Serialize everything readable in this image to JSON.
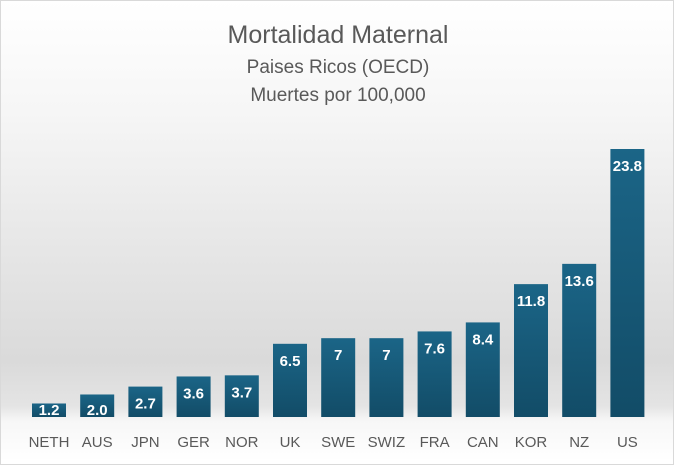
{
  "chart_data": {
    "type": "bar",
    "title": "Mortalidad Maternal",
    "subtitle": [
      "Paises Ricos (OECD)",
      "Muertes por 100,000"
    ],
    "categories": [
      "NETH",
      "AUS",
      "JPN",
      "GER",
      "NOR",
      "UK",
      "SWE",
      "SWIZ",
      "FRA",
      "CAN",
      "KOR",
      "NZ",
      "US"
    ],
    "values": [
      1.2,
      2.0,
      2.7,
      3.6,
      3.7,
      6.5,
      7,
      7,
      7.6,
      8.4,
      11.8,
      13.6,
      23.8
    ],
    "labels": [
      "1.2",
      "2.0",
      "2.7",
      "3.6",
      "3.7",
      "6.5",
      "7",
      "7",
      "7.6",
      "8.4",
      "11.8",
      "13.6",
      "23.8"
    ],
    "xlabel": "",
    "ylabel": "",
    "ylim": [
      0,
      23.8
    ],
    "grid": false,
    "legend": "none",
    "colors": {
      "bar_top": "#1b6587",
      "bar_bottom": "#124c67",
      "label": "#ffffff",
      "tick": "#595959"
    }
  }
}
